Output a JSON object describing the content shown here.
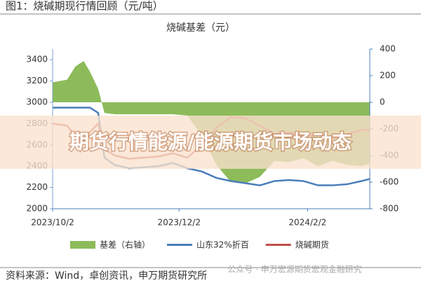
{
  "header": {
    "caption": "图1：烧碱期现行情回顾（元/吨）"
  },
  "banner": "期货行情能源/能源期货市场动态",
  "footer": {
    "source": "资料来源：Wind，卓创资讯，申万期货研究所",
    "watermark": "公众号 · 申万宏源期货宏观金融研究"
  },
  "chart_data": {
    "type": "line",
    "title": "烧碱基差（元）",
    "x": [
      "2023/10/2",
      "2023/10/9",
      "2023/10/13",
      "2023/10/17",
      "2023/10/20",
      "2023/10/24",
      "2023/10/27",
      "2023/11/1",
      "2023/11/8",
      "2023/11/15",
      "2023/11/22",
      "2023/11/29",
      "2023/12/6",
      "2023/12/13",
      "2023/12/20",
      "2023/12/27",
      "2024/1/3",
      "2024/1/10",
      "2024/1/17",
      "2024/1/24",
      "2024/1/31",
      "2024/2/7",
      "2024/2/14",
      "2024/2/21",
      "2024/2/28",
      "2024/3/3"
    ],
    "series": [
      {
        "name": "基差（右轴）",
        "type": "area",
        "axis": "y2",
        "color": "#8dbb5a",
        "values": [
          150,
          170,
          270,
          310,
          230,
          100,
          -80,
          -90,
          -90,
          -90,
          -90,
          -90,
          -100,
          -250,
          -470,
          -600,
          -610,
          -560,
          -440,
          -450,
          -420,
          -480,
          -440,
          -470,
          -480,
          -460
        ]
      },
      {
        "name": "山东32%折百",
        "type": "line",
        "color": "#4a7ebb",
        "values": [
          2950,
          2950,
          2950,
          2950,
          2950,
          2900,
          2480,
          2410,
          2380,
          2390,
          2400,
          2430,
          2380,
          2350,
          2290,
          2260,
          2240,
          2220,
          2260,
          2270,
          2260,
          2220,
          2220,
          2230,
          2260,
          2280
        ]
      },
      {
        "name": "烧碱期货",
        "type": "line",
        "color": "#c0504d",
        "values": [
          2800,
          2780,
          2680,
          2640,
          2720,
          2800,
          2560,
          2500,
          2470,
          2480,
          2490,
          2520,
          2480,
          2600,
          2760,
          2860,
          2850,
          2780,
          2700,
          2720,
          2680,
          2700,
          2660,
          2700,
          2740,
          2740
        ]
      }
    ],
    "xlim": [
      "2023/10/2",
      "2024/3/3"
    ],
    "xticks": [
      "2023/10/2",
      "2023/12/2",
      "2024/2/2"
    ],
    "ylim": [
      2000,
      3500
    ],
    "yticks": [
      2000,
      2200,
      2400,
      2600,
      2800,
      3000,
      3200,
      3400
    ],
    "y2lim": [
      -800,
      400
    ],
    "y2ticks": [
      -800,
      -600,
      -400,
      -200,
      0,
      200,
      400
    ]
  }
}
